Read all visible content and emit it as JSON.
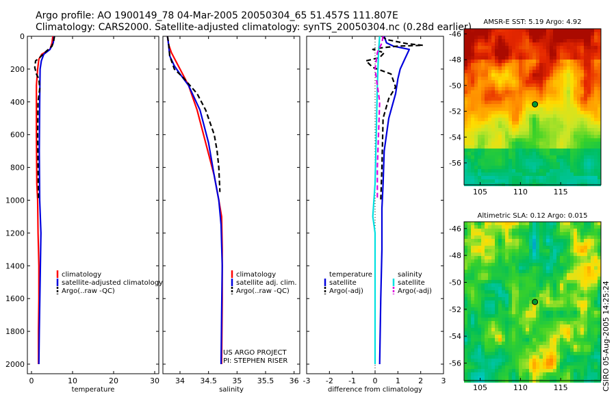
{
  "header": {
    "line1": "Argo profile: AO 1900149_78 04-Mar-2005 20050304_65 51.457S 111.807E",
    "line2": "Climatology: CARS2000. Satellite-adjusted climatology: synTS_20050304.nc (0.28d earlier)"
  },
  "side_text": "CSIRO 05-Aug-2005 14:25:24",
  "chart_data": [
    {
      "type": "line",
      "xlabel": "temperature",
      "xlim": [
        -1,
        31
      ],
      "xticks": [
        0,
        10,
        20,
        30
      ],
      "ylim": [
        0,
        2050
      ],
      "yticks": [
        0,
        200,
        400,
        600,
        800,
        1000,
        1200,
        1400,
        1600,
        1800,
        2000
      ],
      "y_inverted": true,
      "legend": [
        "climatology",
        "satellite-adjusted climatology",
        "Argo(..raw -QC)"
      ],
      "series": [
        {
          "name": "climatology",
          "color": "#ff0000",
          "dash": false,
          "points": [
            [
              5.2,
              0
            ],
            [
              5.0,
              40
            ],
            [
              4.5,
              80
            ],
            [
              2.5,
              110
            ],
            [
              1.8,
              140
            ],
            [
              1.5,
              200
            ],
            [
              1.2,
              300
            ],
            [
              1.2,
              600
            ],
            [
              1.3,
              900
            ],
            [
              1.5,
              1000
            ],
            [
              1.6,
              1200
            ],
            [
              1.8,
              1400
            ],
            [
              1.8,
              1600
            ],
            [
              1.7,
              1800
            ],
            [
              1.7,
              2000
            ]
          ]
        },
        {
          "name": "satellite-adjusted climatology",
          "color": "#0000dd",
          "dash": false,
          "points": [
            [
              5.5,
              0
            ],
            [
              5.3,
              40
            ],
            [
              4.5,
              80
            ],
            [
              3.0,
              110
            ],
            [
              2.4,
              150
            ],
            [
              2.1,
              200
            ],
            [
              2.0,
              400
            ],
            [
              1.9,
              700
            ],
            [
              2.0,
              1000
            ],
            [
              2.3,
              1200
            ],
            [
              2.1,
              1500
            ],
            [
              1.9,
              1800
            ],
            [
              1.8,
              2000
            ]
          ]
        },
        {
          "name": "Argo(..raw -QC)",
          "color": "#000000",
          "dash": true,
          "points": [
            [
              5.6,
              0
            ],
            [
              5.4,
              30
            ],
            [
              5.0,
              60
            ],
            [
              3.2,
              100
            ],
            [
              2.0,
              130
            ],
            [
              1.0,
              150
            ],
            [
              0.8,
              190
            ],
            [
              1.2,
              230
            ],
            [
              1.8,
              260
            ],
            [
              2.0,
              320
            ],
            [
              1.6,
              400
            ],
            [
              1.5,
              600
            ],
            [
              1.6,
              800
            ],
            [
              1.7,
              1000
            ]
          ]
        }
      ]
    },
    {
      "type": "line",
      "xlabel": "salinity",
      "xlim": [
        33.7,
        36.1
      ],
      "xticks": [
        34,
        34.5,
        35,
        35.5,
        36
      ],
      "ylim": [
        0,
        2050
      ],
      "yticks": [
        0,
        200,
        400,
        600,
        800,
        1000,
        1200,
        1400,
        1600,
        1800,
        2000
      ],
      "y_inverted": true,
      "legend": [
        "climatology",
        "satellite adj. clim.",
        "Argo(..raw -QC)"
      ],
      "annotation": [
        "US ARGO PROJECT",
        "PI: STEPHEN RISER"
      ],
      "series": [
        {
          "name": "climatology",
          "color": "#ff0000",
          "dash": false,
          "points": [
            [
              33.78,
              0
            ],
            [
              33.8,
              50
            ],
            [
              33.85,
              100
            ],
            [
              34.0,
              200
            ],
            [
              34.15,
              300
            ],
            [
              34.3,
              450
            ],
            [
              34.45,
              650
            ],
            [
              34.6,
              850
            ],
            [
              34.68,
              1000
            ],
            [
              34.73,
              1100
            ],
            [
              34.74,
              1300
            ],
            [
              34.74,
              1600
            ],
            [
              34.73,
              2000
            ]
          ]
        },
        {
          "name": "satellite adj. clim.",
          "color": "#0000dd",
          "dash": false,
          "points": [
            [
              33.78,
              0
            ],
            [
              33.8,
              50
            ],
            [
              33.82,
              120
            ],
            [
              33.9,
              180
            ],
            [
              34.0,
              230
            ],
            [
              34.15,
              300
            ],
            [
              34.35,
              450
            ],
            [
              34.5,
              650
            ],
            [
              34.6,
              850
            ],
            [
              34.68,
              1000
            ],
            [
              34.72,
              1150
            ],
            [
              34.74,
              1400
            ],
            [
              34.73,
              1700
            ],
            [
              34.72,
              2000
            ]
          ]
        },
        {
          "name": "Argo(..raw -QC)",
          "color": "#000000",
          "dash": true,
          "points": [
            [
              33.78,
              0
            ],
            [
              33.8,
              40
            ],
            [
              33.82,
              120
            ],
            [
              33.9,
              200
            ],
            [
              34.05,
              250
            ],
            [
              34.15,
              290
            ],
            [
              34.3,
              350
            ],
            [
              34.45,
              450
            ],
            [
              34.6,
              600
            ],
            [
              34.65,
              700
            ],
            [
              34.68,
              800
            ],
            [
              34.7,
              950
            ]
          ]
        }
      ]
    },
    {
      "type": "line",
      "xlabel": "difference from climatology",
      "xlim": [
        -3,
        3
      ],
      "xticks": [
        -3,
        -2,
        -1,
        0,
        1,
        2,
        3
      ],
      "ylim": [
        0,
        2050
      ],
      "yticks": [
        0,
        200,
        400,
        600,
        800,
        1000,
        1200,
        1400,
        1600,
        1800,
        2000
      ],
      "y_inverted": true,
      "legend_left": [
        "temperature",
        "satellite",
        "Argo(-adj)"
      ],
      "legend_right": [
        "salinity",
        "satellite",
        "Argo(-adj)"
      ],
      "series": [
        {
          "name": "temperature satellite",
          "color": "#0000dd",
          "dash": false,
          "points": [
            [
              0.4,
              0
            ],
            [
              0.5,
              40
            ],
            [
              0.8,
              60
            ],
            [
              1.5,
              80
            ],
            [
              1.3,
              140
            ],
            [
              1.1,
              200
            ],
            [
              1.0,
              260
            ],
            [
              0.9,
              350
            ],
            [
              0.6,
              500
            ],
            [
              0.4,
              700
            ],
            [
              0.35,
              900
            ],
            [
              0.3,
              1050
            ],
            [
              0.3,
              1300
            ],
            [
              0.25,
              1600
            ],
            [
              0.2,
              2000
            ]
          ]
        },
        {
          "name": "temperature Argo(-adj)",
          "color": "#000000",
          "dash": true,
          "points": [
            [
              0.3,
              0
            ],
            [
              0.5,
              20
            ],
            [
              1.4,
              45
            ],
            [
              2.1,
              55
            ],
            [
              1.0,
              60
            ],
            [
              0.3,
              70
            ],
            [
              -0.1,
              80
            ],
            [
              0.4,
              100
            ],
            [
              0.2,
              130
            ],
            [
              -0.4,
              150
            ],
            [
              -0.1,
              190
            ],
            [
              0.7,
              230
            ],
            [
              0.9,
              310
            ],
            [
              0.6,
              380
            ],
            [
              0.35,
              500
            ],
            [
              0.3,
              800
            ],
            [
              0.25,
              1000
            ]
          ]
        },
        {
          "name": "salinity satellite",
          "color": "#00e0e0",
          "dash": false,
          "points": [
            [
              0.2,
              0
            ],
            [
              0.15,
              100
            ],
            [
              0.1,
              300
            ],
            [
              0.05,
              600
            ],
            [
              0.0,
              900
            ],
            [
              -0.05,
              1000
            ],
            [
              -0.1,
              1100
            ],
            [
              0.0,
              1200
            ],
            [
              0.0,
              1400
            ],
            [
              0.0,
              1700
            ],
            [
              0.0,
              2000
            ]
          ]
        },
        {
          "name": "salinity Argo(-adj)",
          "color": "#dd00dd",
          "dash": true,
          "points": [
            [
              0.35,
              0
            ],
            [
              0.3,
              40
            ],
            [
              0.1,
              100
            ],
            [
              0.0,
              200
            ],
            [
              0.1,
              300
            ],
            [
              0.2,
              400
            ],
            [
              0.15,
              600
            ],
            [
              0.1,
              800
            ],
            [
              0.1,
              1000
            ]
          ]
        }
      ]
    },
    {
      "type": "heatmap",
      "title": "AMSR-E SST: 5.19 Argo: 4.92",
      "xlim": [
        103,
        120
      ],
      "xticks": [
        105,
        110,
        115
      ],
      "ylim": [
        -57.7,
        -45.6
      ],
      "yticks": [
        -46,
        -48,
        -50,
        -52,
        -54,
        -56
      ],
      "marker": {
        "lon": 111.807,
        "lat": -51.457,
        "color": "#009933"
      }
    },
    {
      "type": "heatmap",
      "title": "Altimetric SLA: 0.12 Argo: 0.015",
      "xlim": [
        103,
        120
      ],
      "xticks": [
        105,
        110,
        115
      ],
      "ylim": [
        -57.3,
        -45.5
      ],
      "yticks": [
        -46,
        -48,
        -50,
        -52,
        -54,
        -56
      ],
      "marker": {
        "lon": 111.807,
        "lat": -51.457,
        "color": "#009933"
      }
    }
  ]
}
